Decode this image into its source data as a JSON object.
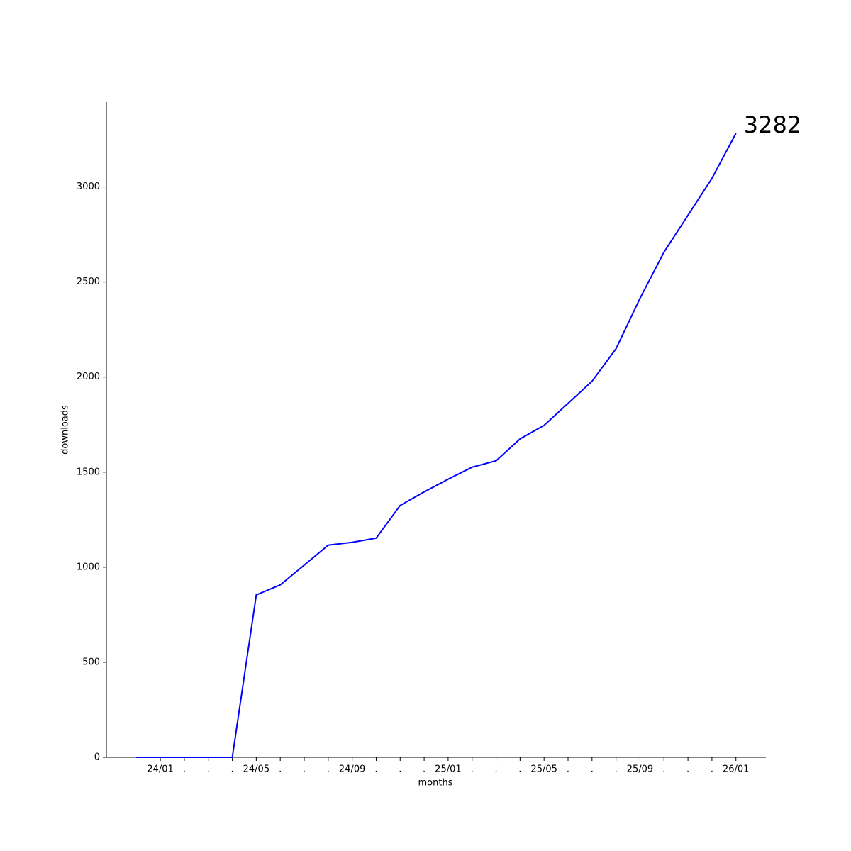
{
  "chart_data": {
    "type": "line",
    "x_label": "months",
    "y_label": "downloads",
    "x": [
      -1,
      0,
      1,
      2,
      3,
      4,
      5,
      6,
      7,
      8,
      9,
      10,
      11,
      12,
      13,
      14,
      15,
      16,
      17,
      18,
      19,
      20,
      21,
      22,
      23,
      24
    ],
    "series": [
      {
        "color": "#0000ff",
        "values": [
          0,
          0,
          0,
          0,
          0,
          854,
          907,
          1011,
          1116,
          1131,
          1153,
          1325,
          1396,
          1463,
          1526,
          1560,
          1675,
          1746,
          1862,
          1978,
          2149,
          2414,
          2657,
          2851,
          3045,
          3282
        ]
      }
    ],
    "annotation_index": 25,
    "xlim": [
      -2.25,
      25.25
    ],
    "ylim": [
      0,
      3446
    ],
    "yticks": [
      0,
      500,
      1000,
      1500,
      2000,
      2500,
      3000
    ],
    "xticks": [
      {
        "value": 0,
        "label": "24/01"
      },
      {
        "value": 1,
        "label": "."
      },
      {
        "value": 2,
        "label": "."
      },
      {
        "value": 3,
        "label": "."
      },
      {
        "value": 4,
        "label": "24/05"
      },
      {
        "value": 5,
        "label": "."
      },
      {
        "value": 6,
        "label": "."
      },
      {
        "value": 7,
        "label": "."
      },
      {
        "value": 8,
        "label": "24/09"
      },
      {
        "value": 9,
        "label": "."
      },
      {
        "value": 10,
        "label": "."
      },
      {
        "value": 11,
        "label": "."
      },
      {
        "value": 12,
        "label": "25/01"
      },
      {
        "value": 13,
        "label": "."
      },
      {
        "value": 14,
        "label": "."
      },
      {
        "value": 15,
        "label": "."
      },
      {
        "value": 16,
        "label": "25/05"
      },
      {
        "value": 17,
        "label": "."
      },
      {
        "value": 18,
        "label": "."
      },
      {
        "value": 19,
        "label": "."
      },
      {
        "value": 20,
        "label": "25/09"
      },
      {
        "value": 21,
        "label": "."
      },
      {
        "value": 22,
        "label": "."
      },
      {
        "value": 23,
        "label": "."
      },
      {
        "value": 24,
        "label": "26/01"
      }
    ]
  }
}
